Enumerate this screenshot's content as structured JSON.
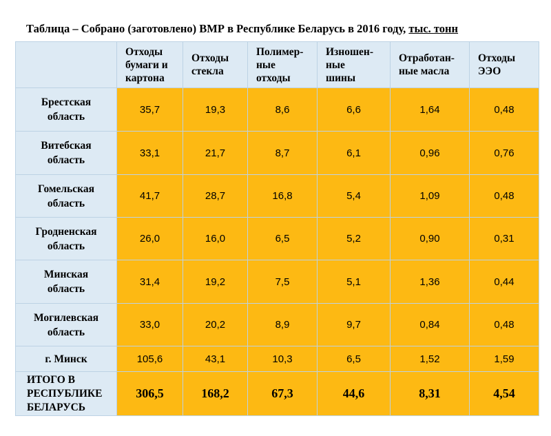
{
  "title": {
    "text": "Таблица – Собрано (заготовлено) ВМР в Республике Беларусь в 2016 году,",
    "units": "тыс. тонн"
  },
  "columns": [
    [
      "Отходы",
      "бумаги и",
      "картона"
    ],
    [
      "Отходы",
      "стекла"
    ],
    [
      "Полимер-",
      "ные",
      "отходы"
    ],
    [
      "Изношен-",
      "ные",
      "шины"
    ],
    [
      "Отработан-",
      "ные масла"
    ],
    [
      "Отходы",
      "ЭЭО"
    ]
  ],
  "rows": [
    {
      "name": [
        "Брестская",
        "область"
      ],
      "values": [
        "35,7",
        "19,3",
        "8,6",
        "6,6",
        "1,64",
        "0,48"
      ]
    },
    {
      "name": [
        "Витебская",
        "область"
      ],
      "values": [
        "33,1",
        "21,7",
        "8,7",
        "6,1",
        "0,96",
        "0,76"
      ]
    },
    {
      "name": [
        "Гомельская",
        "область"
      ],
      "values": [
        "41,7",
        "28,7",
        "16,8",
        "5,4",
        "1,09",
        "0,48"
      ]
    },
    {
      "name": [
        "Гродненская",
        "область"
      ],
      "values": [
        "26,0",
        "16,0",
        "6,5",
        "5,2",
        "0,90",
        "0,31"
      ]
    },
    {
      "name": [
        "Минская",
        "область"
      ],
      "values": [
        "31,4",
        "19,2",
        "7,5",
        "5,1",
        "1,36",
        "0,44"
      ]
    },
    {
      "name": [
        "Могилевская",
        "область"
      ],
      "values": [
        "33,0",
        "20,2",
        "8,9",
        "9,7",
        "0,84",
        "0,48"
      ]
    },
    {
      "name": [
        "г. Минск"
      ],
      "values": [
        "105,6",
        "43,1",
        "10,3",
        "6,5",
        "1,52",
        "1,59"
      ]
    }
  ],
  "total": {
    "name": [
      "ИТОГО В",
      "РЕСПУБЛИКЕ",
      "БЕЛАРУСЬ"
    ],
    "values": [
      "306,5",
      "168,2",
      "67,3",
      "44,6",
      "8,31",
      "4,54"
    ]
  }
}
